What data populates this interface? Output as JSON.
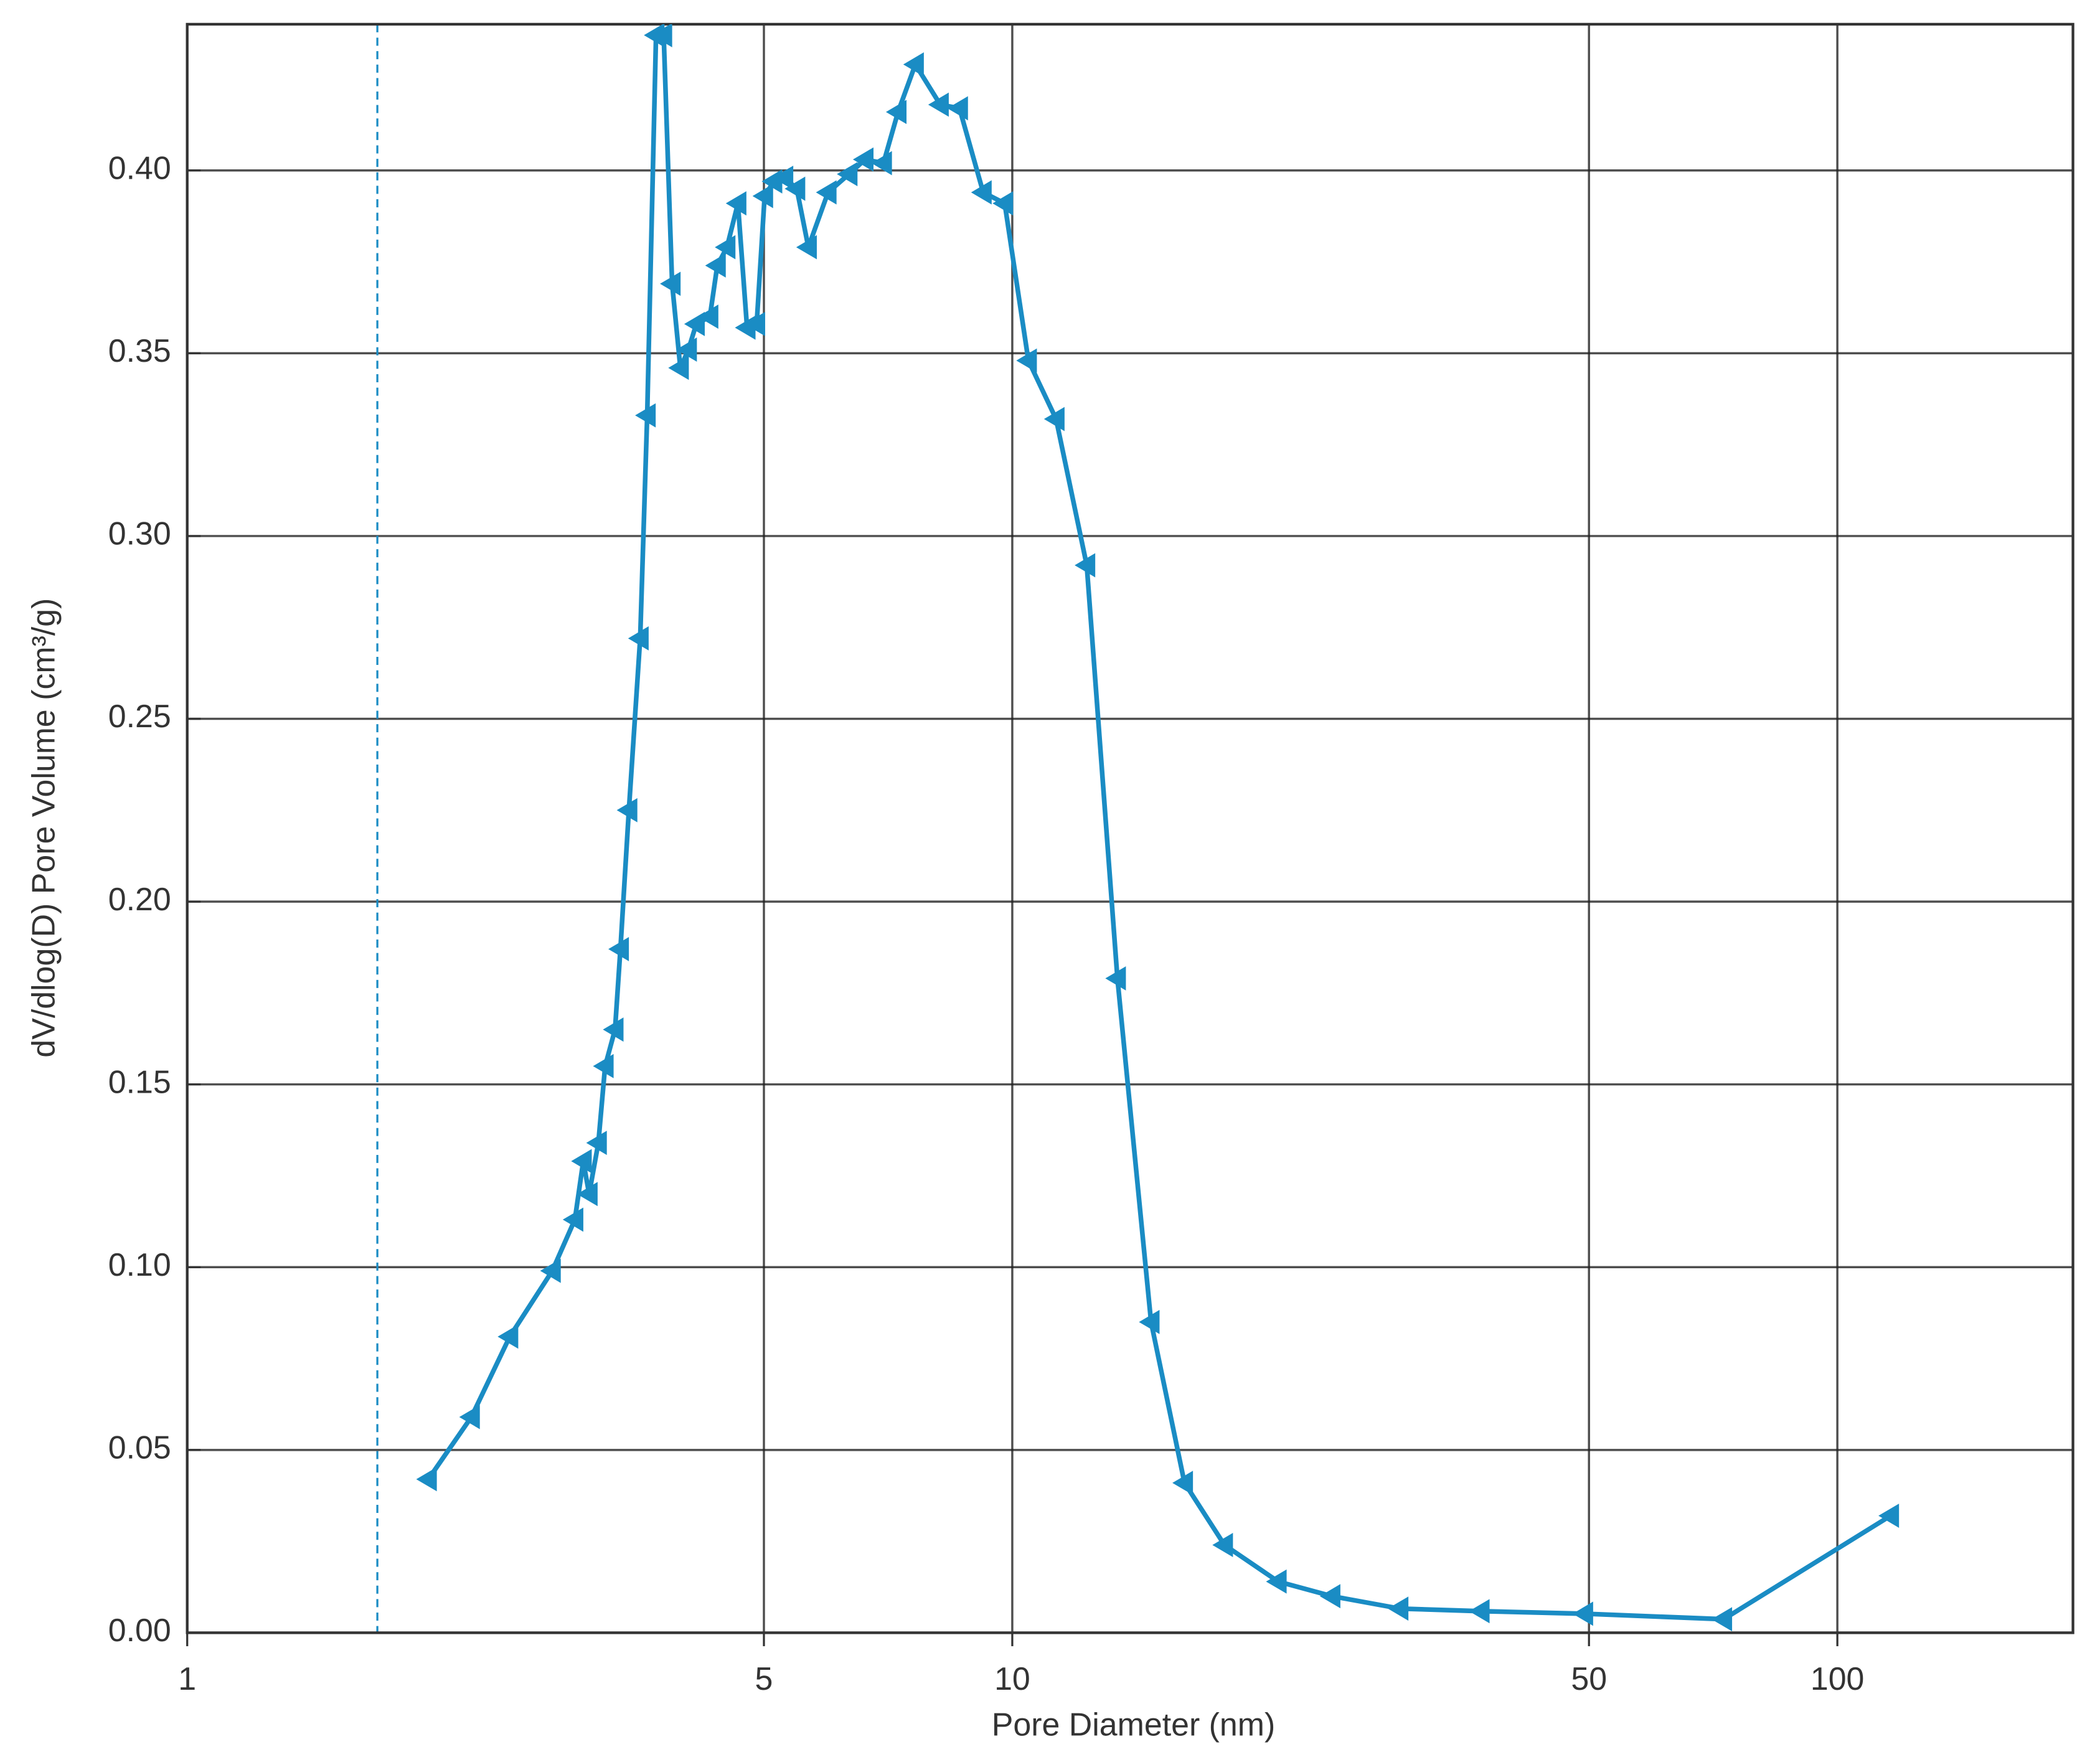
{
  "chart_data": {
    "type": "line",
    "x_label": "Pore Diameter (nm)",
    "y_label": "dV/dlog(D) Pore Volume (cm³/g)",
    "xscale": "log",
    "xlim": [
      1,
      193
    ],
    "xticks": [
      1,
      5,
      10,
      50,
      100
    ],
    "ylim": [
      0,
      0.44
    ],
    "yticks": [
      {
        "value": 0,
        "label": "0.00"
      },
      {
        "value": 0.05,
        "label": "0.05"
      },
      {
        "value": 0.1,
        "label": "0.10"
      },
      {
        "value": 0.15,
        "label": "0.15"
      },
      {
        "value": 0.2,
        "label": "0.20"
      },
      {
        "value": 0.25,
        "label": "0.25"
      },
      {
        "value": 0.3,
        "label": "0.30"
      },
      {
        "value": 0.35,
        "label": "0.35"
      },
      {
        "value": 0.4,
        "label": "0.40"
      }
    ],
    "grid": true,
    "reference_line": {
      "x": 1.7,
      "style": "dashed"
    },
    "series": [
      {
        "color": "#1a8cc4",
        "marker": "triangle-left",
        "x": [
          1.96,
          2.21,
          2.46,
          2.77,
          2.95,
          3.02,
          3.07,
          3.15,
          3.21,
          3.3,
          3.35,
          3.43,
          3.54,
          3.61,
          3.7,
          3.78,
          3.87,
          3.96,
          4.05,
          4.14,
          4.3,
          4.39,
          4.51,
          4.65,
          4.77,
          4.9,
          5.01,
          5.14,
          5.3,
          5.48,
          5.66,
          5.98,
          6.34,
          6.63,
          6.98,
          7.27,
          7.63,
          8.18,
          8.63,
          9.22,
          9.79,
          10.46,
          11.3,
          12.31,
          13.41,
          14.73,
          16.17,
          18.08,
          21.0,
          24.4,
          29.5,
          37.0,
          49.4,
          72.8,
          116
        ],
        "values": [
          0.042,
          0.059,
          0.081,
          0.099,
          0.113,
          0.129,
          0.12,
          0.134,
          0.155,
          0.165,
          0.187,
          0.225,
          0.272,
          0.333,
          0.437,
          0.437,
          0.369,
          0.346,
          0.351,
          0.358,
          0.36,
          0.374,
          0.379,
          0.391,
          0.357,
          0.358,
          0.393,
          0.397,
          0.398,
          0.395,
          0.379,
          0.394,
          0.399,
          0.403,
          0.402,
          0.416,
          0.429,
          0.418,
          0.417,
          0.394,
          0.391,
          0.348,
          0.332,
          0.292,
          0.179,
          0.085,
          0.041,
          0.024,
          0.014,
          0.01,
          0.0066,
          0.0059,
          0.0052,
          0.0037,
          0.032
        ]
      }
    ]
  }
}
